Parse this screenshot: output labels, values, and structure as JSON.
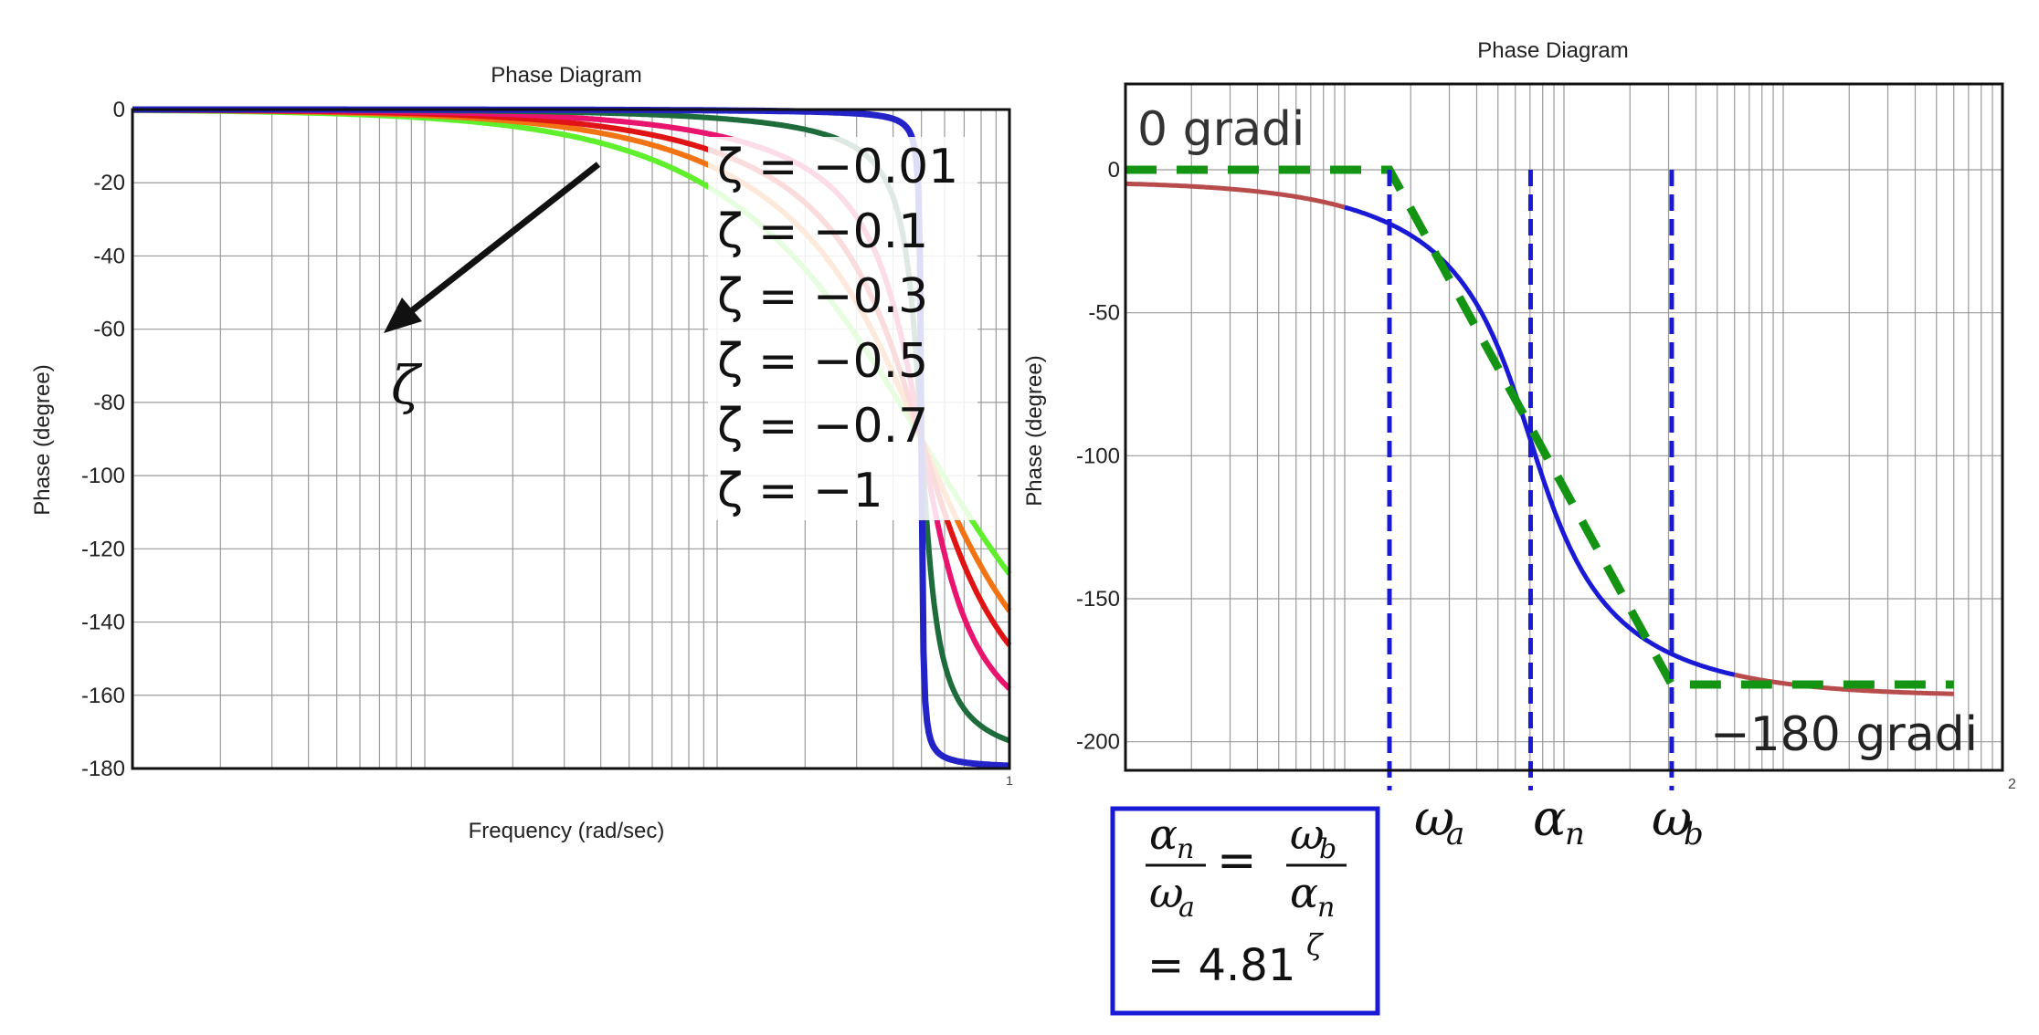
{
  "chart_data": [
    {
      "type": "line",
      "title": "Phase Diagram",
      "xlabel": "Frequency (rad/sec)",
      "ylabel": "Phase (degree)",
      "x_scale": "log",
      "xlim": [
        0.01,
        10
      ],
      "ylim": [
        -180,
        0
      ],
      "y_ticks": [
        "0",
        "-20",
        "-40",
        "-60",
        "-80",
        "-100",
        "-120",
        "-140",
        "-160",
        "-180"
      ],
      "x_tick_labels": [
        "",
        "",
        "1"
      ],
      "grid": true,
      "arrow_label": "ζ",
      "colors": {
        "z001": "#2323c8",
        "z01": "#1e6b3c",
        "z03": "#e8146e",
        "z05": "#e01414",
        "z07": "#f27314",
        "z1": "#5fef2c"
      },
      "series": [
        {
          "name": "ζ = −0.01",
          "zeta": 0.01,
          "color_key": "z001"
        },
        {
          "name": "ζ = −0.1",
          "zeta": 0.1,
          "color_key": "z01"
        },
        {
          "name": "ζ = −0.3",
          "zeta": 0.3,
          "color_key": "z03"
        },
        {
          "name": "ζ = −0.5",
          "zeta": 0.5,
          "color_key": "z05"
        },
        {
          "name": "ζ = −0.7",
          "zeta": 0.7,
          "color_key": "z07"
        },
        {
          "name": "ζ = −1",
          "zeta": 1.0,
          "color_key": "z1"
        }
      ]
    },
    {
      "type": "line",
      "title": "Phase Diagram",
      "xlabel": "",
      "ylabel": "Phase (degree)",
      "x_scale": "log",
      "xlim": [
        0.01,
        100
      ],
      "ylim": [
        -210,
        30
      ],
      "y_ticks": [
        "0",
        "-50",
        "-100",
        "-150",
        "-200"
      ],
      "x_tick_labels": [
        "2"
      ],
      "grid": true,
      "curve_color": "#1a1ad6",
      "tail_color": "#b84c4c",
      "asymptote_color": "#139413",
      "marker_color": "#1a1ad6",
      "annotations": {
        "zero_label": "0 gradi",
        "m180_label": "−180 gradi",
        "omega_a": "ω",
        "omega_a_sub": "a",
        "alpha_n": "α",
        "alpha_n_sub": "n",
        "omega_b": "ω",
        "omega_b_sub": "b"
      },
      "formula": {
        "n1": "α",
        "n1_sub": "n",
        "d1": "ω",
        "d1_sub": "a",
        "eq": "=",
        "n2": "ω",
        "n2_sub": "b",
        "d2": "α",
        "d2_sub": "n",
        "line2": "= 4.81",
        "exp": "ζ"
      },
      "box_color": "#1a1ad6"
    }
  ]
}
